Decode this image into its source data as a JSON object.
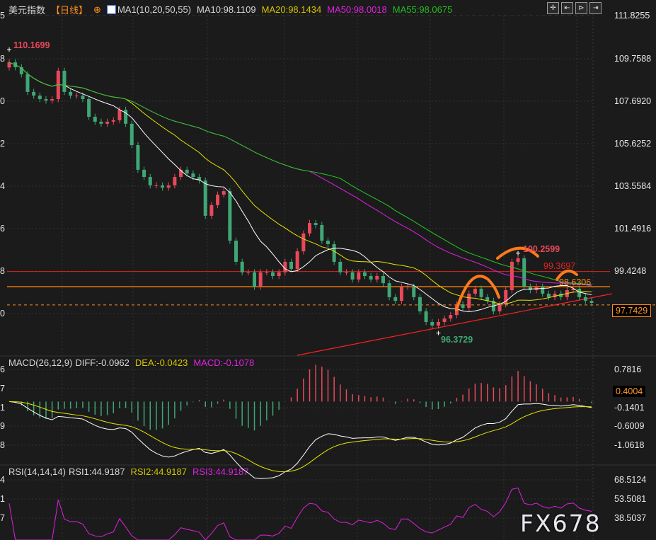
{
  "main": {
    "symbol": "美元指数",
    "period": "【日线】",
    "ma_label": "MA1(10,20,50,55)",
    "ma10": "MA10:98.1109",
    "ma20": "MA20:98.1434",
    "ma50": "MA50:98.0018",
    "ma55": "MA55:98.0675",
    "toolbar": [
      "crosshair-icon",
      "zoom-in-icon",
      "zoom-out-icon",
      "scroll-end-icon"
    ],
    "axis_ticks": [
      "111.8255",
      "109.7588",
      "107.6920",
      "105.6252",
      "103.5584",
      "101.4916",
      "99.4248"
    ],
    "left_cut_ticks": [
      "5",
      "8",
      "0",
      "2",
      "4",
      "6",
      "8",
      "0"
    ],
    "current_price": "97.7429",
    "annotations": {
      "high_start": "110.1699",
      "high_recent": "100.2599",
      "low": "96.3729",
      "resistance_red": "99.3697",
      "resistance_orange": "98.6306"
    }
  },
  "macd": {
    "label": "MACD(26,12,9)",
    "diff": "DIFF:-0.0962",
    "dea": "DEA:-0.0423",
    "macd": "MACD:-0.1078",
    "axis_ticks": [
      "0.7816",
      "-0.1401",
      "-0.6009",
      "-1.0618"
    ],
    "left_cut_ticks": [
      "6",
      "7",
      "1",
      "9",
      "8"
    ],
    "current_value": "0.4004"
  },
  "rsi": {
    "label": "RSI(14,14,14)",
    "rsi1": "RSI1:44.9187",
    "rsi2": "RSI2:44.9187",
    "rsi3": "RSI3:44.9187",
    "axis_ticks": [
      "68.5124",
      "53.5081",
      "38.5037"
    ],
    "left_cut_ticks": [
      "4",
      "1",
      "7"
    ]
  },
  "watermark": "FX678",
  "colors": {
    "up": "#e8495a",
    "down": "#3fa776",
    "ma10": "#ffffff",
    "ma20": "#e6e600",
    "ma50": "#e020e0",
    "ma55": "#22cc22",
    "hline_red": "#e02020",
    "hline_orange": "#ff7f00",
    "trend": "#ff2020",
    "hand_drawn": "#ff7a1a"
  },
  "chart_data": {
    "type": "candlestick",
    "closes": [
      109.55,
      109.31,
      108.97,
      108.11,
      107.93,
      107.76,
      107.69,
      107.76,
      109.14,
      108.11,
      107.93,
      107.93,
      107.76,
      106.9,
      106.66,
      106.56,
      106.66,
      106.73,
      107.24,
      106.56,
      105.52,
      104.32,
      103.97,
      103.56,
      103.56,
      103.45,
      103.56,
      103.97,
      104.32,
      104.14,
      103.97,
      103.8,
      102.08,
      102.6,
      103.11,
      103.28,
      100.87,
      99.84,
      99.33,
      99.33,
      98.63,
      99.33,
      99.33,
      99.15,
      99.33,
      99.84,
      99.49,
      100.35,
      101.22,
      101.73,
      101.63,
      100.87,
      100.7,
      99.84,
      99.33,
      99.33,
      98.98,
      99.33,
      99.15,
      98.98,
      99.15,
      98.8,
      98.12,
      97.94,
      98.63,
      98.63,
      98.12,
      97.43,
      96.91,
      96.74,
      96.91,
      97.08,
      97.25,
      97.77,
      97.6,
      98.29,
      98.53,
      98.12,
      97.94,
      97.43,
      97.77,
      98.46,
      99.84,
      100.01,
      98.63,
      98.46,
      98.63,
      98.29,
      98.12,
      98.29,
      98.12,
      98.46,
      98.53,
      98.12,
      97.94,
      97.84
    ],
    "first_open": 109.3,
    "price_axis": [
      97.7429,
      111.8255
    ],
    "horizontal_lines": [
      99.3697,
      98.6306
    ],
    "current_price": 97.7429,
    "marked_high": 110.1699,
    "marked_recent_high": 100.2599,
    "marked_low": 96.3729,
    "moving_averages": [
      10,
      20,
      50,
      55
    ],
    "macd_params": [
      26,
      12,
      9
    ],
    "macd_axis": [
      -1.0618,
      0.7816
    ],
    "rsi_period": 14,
    "rsi_axis": [
      38.5037,
      68.5124
    ],
    "grid": true
  }
}
